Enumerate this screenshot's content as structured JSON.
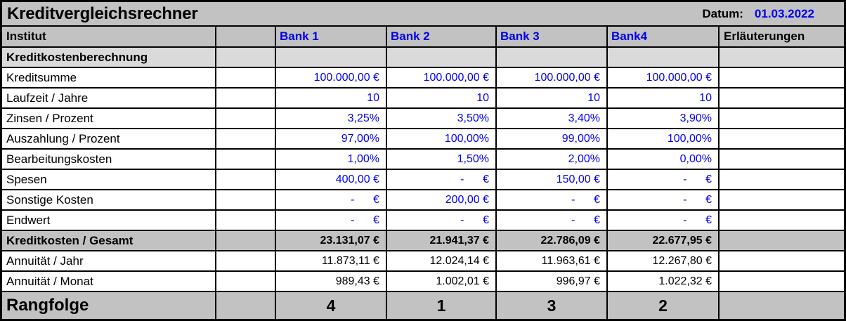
{
  "title": "Kreditvergleichsrechner",
  "date": {
    "label": "Datum:",
    "value": "01.03.2022"
  },
  "columns": {
    "institut": "Institut",
    "spacer": "",
    "banks": [
      "Bank 1",
      "Bank 2",
      "Bank 3",
      "Bank4"
    ],
    "notes": "Erläuterungen"
  },
  "rows": [
    {
      "label": "Kreditkostenberechnung",
      "type": "section",
      "values": [
        "",
        "",
        "",
        ""
      ]
    },
    {
      "label": "Kreditsumme",
      "type": "input",
      "values": [
        "100.000,00 €",
        "100.000,00 €",
        "100.000,00 €",
        "100.000,00 €"
      ]
    },
    {
      "label": "Laufzeit / Jahre",
      "type": "input",
      "values": [
        "10",
        "10",
        "10",
        "10"
      ]
    },
    {
      "label": "Zinsen / Prozent",
      "type": "input",
      "values": [
        "3,25%",
        "3,50%",
        "3,40%",
        "3,90%"
      ]
    },
    {
      "label": "Auszahlung / Prozent",
      "type": "input",
      "values": [
        "97,00%",
        "100,00%",
        "99,00%",
        "100,00%"
      ]
    },
    {
      "label": "Bearbeitungskosten",
      "type": "input",
      "values": [
        "1,00%",
        "1,50%",
        "2,00%",
        "0,00%"
      ]
    },
    {
      "label": "Spesen",
      "type": "input",
      "values": [
        "400,00 €",
        "-      €",
        "150,00 €",
        "-      €"
      ]
    },
    {
      "label": "Sonstige Kosten",
      "type": "input",
      "values": [
        "-      €",
        "200,00 €",
        "-      €",
        "-      €"
      ]
    },
    {
      "label": "Endwert",
      "type": "input",
      "values": [
        "-      €",
        "-      €",
        "-      €",
        "-      €"
      ]
    },
    {
      "label": "Kreditkosten / Gesamt",
      "type": "total",
      "values": [
        "23.131,07 €",
        "21.941,37 €",
        "22.786,09 €",
        "22.677,95 €"
      ]
    },
    {
      "label": "Annuität / Jahr",
      "type": "result",
      "values": [
        "11.873,11 €",
        "12.024,14 €",
        "11.963,61 €",
        "12.267,80 €"
      ]
    },
    {
      "label": "Annuität / Monat",
      "type": "result",
      "values": [
        "989,43 €",
        "1.002,01 €",
        "996,97 €",
        "1.022,32 €"
      ]
    },
    {
      "label": "Rangfolge",
      "type": "rank",
      "values": [
        "4",
        "1",
        "3",
        "2"
      ]
    }
  ],
  "colors": {
    "grid_line": "#000000",
    "header_bg": "#c2c2c2",
    "section_bg": "#dadada",
    "value_blue": "#0000ee",
    "cell_bg": "#ffffff"
  }
}
